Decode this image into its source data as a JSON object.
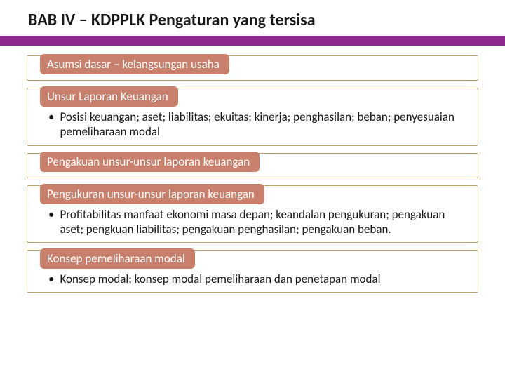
{
  "title": "BAB IV – KDPPLK Pengaturan yang tersisa",
  "colors": {
    "band": "#8e2a8e",
    "pill_bg": "#c87f6c",
    "pill_text": "#ffffff",
    "block_border": "#bfa16a",
    "title_color": "#1a1a1a",
    "body_color": "#1a1a1a",
    "page_bg": "#ffffff"
  },
  "typography": {
    "title_fontsize": 24,
    "title_weight": 700,
    "pill_fontsize": 17,
    "body_fontsize": 17
  },
  "blocks": [
    {
      "pill": "Asumsi dasar – kelangsungan usaha",
      "bullets": []
    },
    {
      "pill": "Unsur Laporan Keuangan",
      "bullets": [
        "Posisi keuangan; aset; liabilitas; ekuitas; kinerja; penghasilan; beban; penyesuaian pemeliharaan modal"
      ]
    },
    {
      "pill": "Pengakuan unsur-unsur laporan keuangan",
      "bullets": []
    },
    {
      "pill": "Pengukuran unsur-unsur laporan keuangan",
      "bullets": [
        "Profitabilitas manfaat ekonomi masa depan; keandalan pengukuran; pengakuan aset; pengkuan liabilitas; pengakuan penghasilan; pengakuan beban."
      ]
    },
    {
      "pill": "Konsep pemeliharaan modal",
      "bullets": [
        "Konsep modal; konsep modal pemeliharaan dan penetapan modal"
      ]
    }
  ]
}
